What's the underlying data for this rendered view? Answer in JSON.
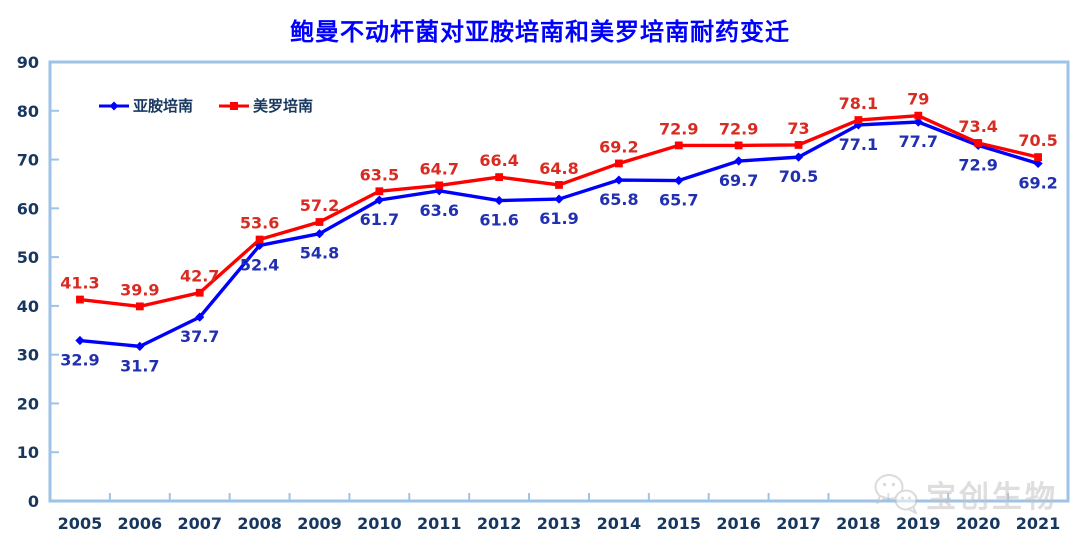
{
  "title": "鲍曼不动杆菌对亚胺培南和美罗培南耐药变迁",
  "colors": {
    "title": "#0000ff",
    "axis_text": "#17375e",
    "plot_border": "#9dc3e6",
    "imipenem_line": "#0000ff",
    "meropenem_line": "#ff0000",
    "imipenem_label": "#2130b0",
    "meropenem_label": "#d92b21",
    "watermark": "#c4c4c4"
  },
  "watermark": {
    "text": "宝创生物",
    "icon": "wechat-logo"
  },
  "chart_data": {
    "type": "line",
    "title": "鲍曼不动杆菌对亚胺培南和美罗培南耐药变迁",
    "categories": [
      "2005",
      "2006",
      "2007",
      "2008",
      "2009",
      "2010",
      "2011",
      "2012",
      "2013",
      "2014",
      "2015",
      "2016",
      "2017",
      "2018",
      "2019",
      "2020",
      "2021"
    ],
    "series": [
      {
        "name": "亚胺培南",
        "color": "#0000ff",
        "label_color": "#2130b0",
        "marker": "diamond",
        "label_position": "below",
        "values": [
          32.9,
          31.7,
          37.7,
          52.4,
          54.8,
          61.7,
          63.6,
          61.6,
          61.9,
          65.8,
          65.7,
          69.7,
          70.5,
          77.1,
          77.7,
          72.9,
          69.2
        ]
      },
      {
        "name": "美罗培南",
        "color": "#ff0000",
        "label_color": "#d92b21",
        "marker": "square",
        "label_position": "above",
        "values": [
          41.3,
          39.9,
          42.7,
          53.6,
          57.2,
          63.5,
          64.7,
          66.4,
          64.8,
          69.2,
          72.9,
          72.9,
          73,
          78.1,
          79,
          73.4,
          70.5
        ]
      }
    ],
    "xlabel": "",
    "ylabel": "",
    "ylim": [
      0,
      90
    ],
    "yticks": [
      0,
      10,
      20,
      30,
      40,
      50,
      60,
      70,
      80,
      90
    ],
    "grid": false,
    "data_labels": true,
    "legend_position": "top-left-inside"
  }
}
